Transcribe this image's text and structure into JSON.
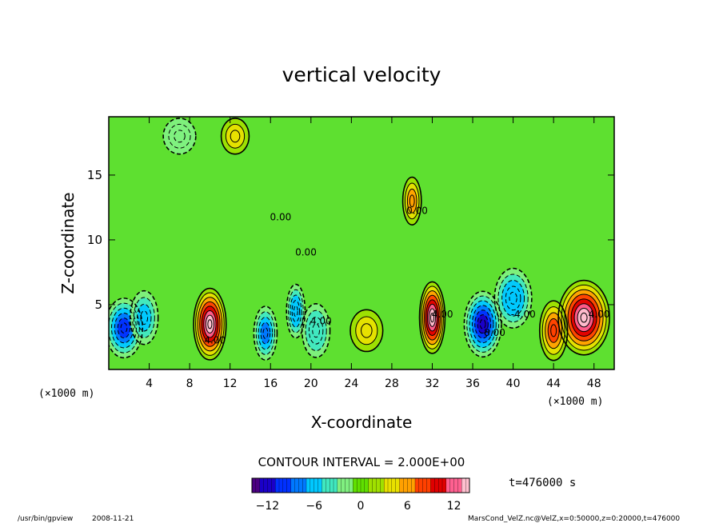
{
  "chart_data": {
    "type": "heatmap",
    "title": "vertical velocity",
    "xlabel": "X-coordinate",
    "ylabel": "Z-coordinate",
    "x_units": "(×1000 m)",
    "y_units": "(×1000 m)",
    "xlim": [
      0,
      50
    ],
    "ylim": [
      0,
      19.5
    ],
    "x_ticks": [
      4,
      8,
      12,
      16,
      20,
      24,
      28,
      32,
      36,
      40,
      44,
      48
    ],
    "y_ticks": [
      5,
      10,
      15
    ],
    "contour_interval_text": "CONTOUR INTERVAL = 2.000E+00",
    "time_text": "t=476000 s",
    "colorbar": {
      "min": -14,
      "max": 14,
      "ticks": [
        -12,
        -6,
        0,
        6,
        12
      ],
      "colors": [
        "#4b0082",
        "#1a00c8",
        "#0030ff",
        "#0078ff",
        "#00c8ff",
        "#40e8c0",
        "#80f080",
        "#60e000",
        "#a0e000",
        "#e8e000",
        "#ffa000",
        "#ff4000",
        "#e00000",
        "#ff6090",
        "#ffc0d0"
      ]
    },
    "cells": [
      {
        "x": 1.5,
        "z": 3.2,
        "w": -10,
        "sx": 1.6,
        "sz": 2.0
      },
      {
        "x": 3.5,
        "z": 4.0,
        "w": -6,
        "sx": 1.2,
        "sz": 1.8
      },
      {
        "x": 10.0,
        "z": 3.5,
        "w": 14,
        "sx": 1.4,
        "sz": 2.4
      },
      {
        "x": 15.5,
        "z": 2.8,
        "w": -8,
        "sx": 1.0,
        "sz": 1.8
      },
      {
        "x": 18.5,
        "z": 4.5,
        "w": -7,
        "sx": 0.8,
        "sz": 1.8
      },
      {
        "x": 20.5,
        "z": 3.0,
        "w": -5,
        "sx": 1.2,
        "sz": 1.8
      },
      {
        "x": 25.5,
        "z": 3.0,
        "w": 4,
        "sx": 1.4,
        "sz": 1.4
      },
      {
        "x": 32.0,
        "z": 4.0,
        "w": 14,
        "sx": 1.1,
        "sz": 2.4
      },
      {
        "x": 37.0,
        "z": 3.5,
        "w": -12,
        "sx": 1.6,
        "sz": 2.2
      },
      {
        "x": 40.0,
        "z": 5.5,
        "w": -7,
        "sx": 1.6,
        "sz": 2.0
      },
      {
        "x": 47.0,
        "z": 4.0,
        "w": 14,
        "sx": 2.2,
        "sz": 2.5
      },
      {
        "x": 44.0,
        "z": 3.0,
        "w": 8,
        "sx": 1.2,
        "sz": 2.0
      },
      {
        "x": 30.0,
        "z": 13.0,
        "w": 6,
        "sx": 0.8,
        "sz": 1.6
      },
      {
        "x": 12.5,
        "z": 18.0,
        "w": 4,
        "sx": 1.2,
        "sz": 1.2
      },
      {
        "x": 7.0,
        "z": 18.0,
        "w": -3,
        "sx": 1.4,
        "sz": 1.2
      }
    ],
    "contour_labels": [
      {
        "text": "0.00",
        "x": 17.0,
        "z": 11.5
      },
      {
        "text": "0.00",
        "x": 19.5,
        "z": 8.8
      },
      {
        "text": "0.00",
        "x": 30.5,
        "z": 12.0
      },
      {
        "text": "4.00",
        "x": 10.5,
        "z": 2.0
      },
      {
        "text": "4.00",
        "x": 21.0,
        "z": 3.5
      },
      {
        "text": "4.00",
        "x": 33.0,
        "z": 4.0
      },
      {
        "text": "-8.00",
        "x": 38.0,
        "z": 2.6
      },
      {
        "text": "-4.00",
        "x": 41.0,
        "z": 4.0
      },
      {
        "text": "4.00",
        "x": 48.5,
        "z": 4.0
      }
    ]
  },
  "footer": {
    "program": "/usr/bin/gpview",
    "date": "2008-11-21",
    "source": "MarsCond_VelZ.nc@VelZ,x=0:50000,z=0:20000,t=476000"
  }
}
